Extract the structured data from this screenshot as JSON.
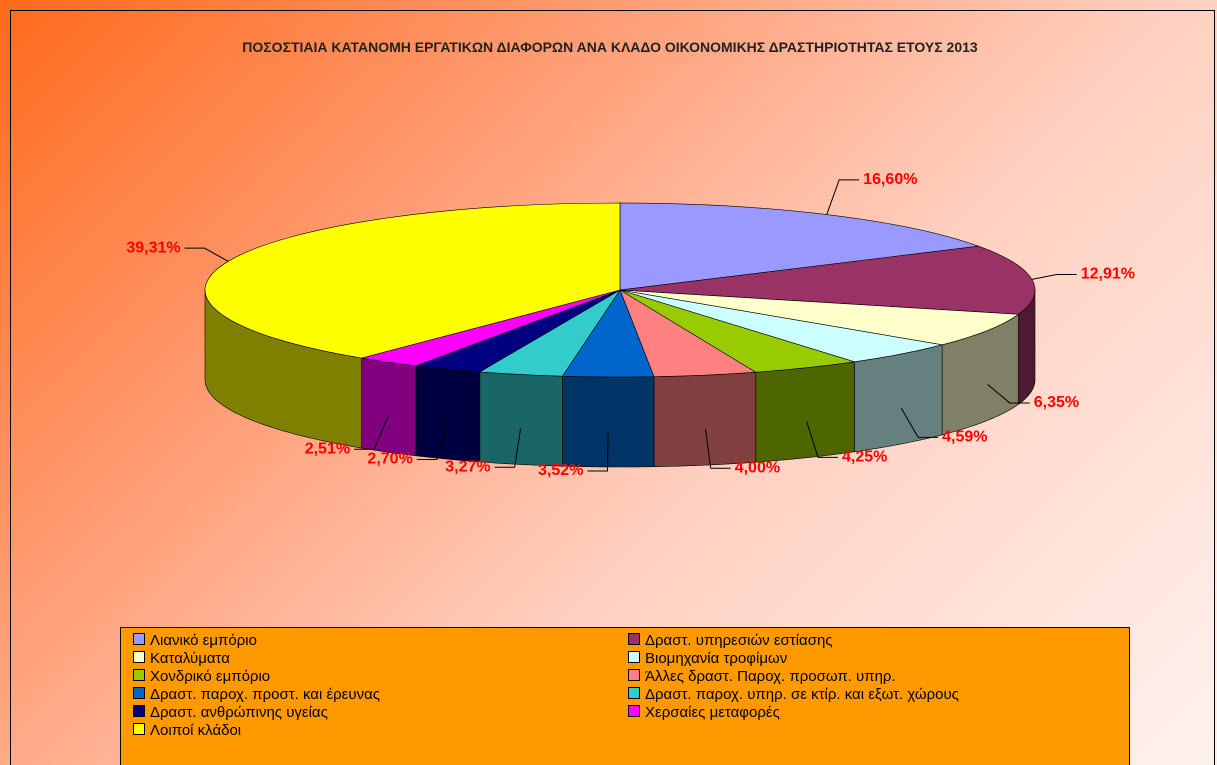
{
  "chart_data": {
    "type": "pie3d",
    "title": "ΠΟΣΟΣΤΙΑΙΑ ΚΑΤΑΝΟΜΗ ΕΡΓΑΤΙΚΩΝ ΔΙΑΦΟΡΩΝ ΑΝΑ ΚΛΑΔΟ ΟΙΚΟΝΟΜΙΚΗΣ ΔΡΑΣΤΗΡΙΟΤΗΤΑΣ ΕΤΟΥΣ 2013",
    "categories": [
      "Λιανικό εμπόριο",
      "Δραστ. υπηρεσιών εστίασης",
      "Καταλύματα",
      "Βιομηχανία τροφίμων",
      "Χονδρικό εμπόριο",
      "Άλλες δραστ. Παροχ. προσωπ. υπηρ.",
      "Δραστ. παροχ. προστ. και έρευνας",
      "Δραστ. παροχ. υπηρ. σε κτίρ. και εξωτ. χώρους",
      "Δραστ. ανθρώπινης υγείας",
      "Χερσαίες μεταφορές",
      "Λοιποί κλάδοι"
    ],
    "values": [
      16.6,
      12.91,
      6.35,
      4.59,
      4.25,
      4.0,
      3.52,
      3.27,
      2.7,
      2.51,
      39.31
    ],
    "value_labels": [
      "16,60%",
      "12,91%",
      "6,35%",
      "4,59%",
      "4,25%",
      "4,00%",
      "3,52%",
      "3,27%",
      "2,70%",
      "2,51%",
      "39,31%"
    ],
    "colors": [
      "#9999ff",
      "#993366",
      "#ffffcc",
      "#ccffff",
      "#99cc00",
      "#ff8080",
      "#0066cc",
      "#33cccc",
      "#000080",
      "#ff00ff",
      "#ffff00"
    ]
  }
}
